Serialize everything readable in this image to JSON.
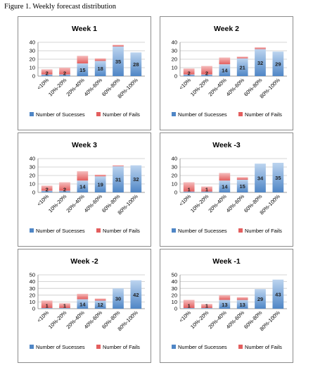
{
  "figure_caption": "Figure 1. Weekly forecast distribution",
  "colors": {
    "success_light": "#bcd4ef",
    "success_dark": "#4f86c6",
    "fail_light": "#f5bcbc",
    "fail_dark": "#e35e5e",
    "gridline": "#c8c8c8",
    "axis": "#888888"
  },
  "chart_data": [
    {
      "type": "bar",
      "stacked": true,
      "title": "Week 1",
      "categories": [
        "<10%",
        "10%-20%",
        "20%-40%",
        "40%-60%",
        "60%-80%",
        "80%-100%"
      ],
      "ylim": [
        0,
        40
      ],
      "yticks": [
        0,
        10,
        20,
        30,
        40
      ],
      "grid": true,
      "legend": "bottom",
      "series": [
        {
          "name": "Number of Sucesses",
          "values": [
            2,
            2,
            15,
            18,
            35,
            28
          ],
          "labels": [
            "2",
            "2",
            "15",
            "18",
            "35",
            "28"
          ]
        },
        {
          "name": "Number of Fails",
          "values": [
            6,
            8,
            9,
            3,
            2,
            0
          ]
        }
      ]
    },
    {
      "type": "bar",
      "stacked": true,
      "title": "Week 2",
      "categories": [
        "<10%",
        "10%-20%",
        "20%-40%",
        "40%-60%",
        "60%-80%",
        "80%-100%"
      ],
      "ylim": [
        0,
        40
      ],
      "yticks": [
        0,
        10,
        20,
        30,
        40
      ],
      "grid": true,
      "legend": "bottom",
      "series": [
        {
          "name": "Number of Sucesses",
          "values": [
            2,
            2,
            14,
            21,
            32,
            29
          ],
          "labels": [
            "2",
            "2",
            "14",
            "21",
            "32",
            "29"
          ]
        },
        {
          "name": "Number of Fails",
          "values": [
            7,
            10,
            8,
            2,
            2,
            0
          ]
        }
      ]
    },
    {
      "type": "bar",
      "stacked": true,
      "title": "Week 3",
      "categories": [
        "<10%",
        "10%-20%",
        "20%-40%",
        "40%-60%",
        "60%-80%",
        "80%-100%"
      ],
      "ylim": [
        0,
        40
      ],
      "yticks": [
        0,
        10,
        20,
        30,
        40
      ],
      "grid": true,
      "legend": "bottom",
      "series": [
        {
          "name": "Number of Sucesses",
          "values": [
            2,
            2,
            14,
            19,
            31,
            32
          ],
          "labels": [
            "2",
            "2",
            "14",
            "19",
            "31",
            "32"
          ]
        },
        {
          "name": "Number of Fails",
          "values": [
            6,
            10,
            11,
            2,
            1,
            0
          ]
        }
      ]
    },
    {
      "type": "bar",
      "stacked": true,
      "title": "Week -3",
      "categories": [
        "<10%",
        "10%-20%",
        "20%-40%",
        "40%-60%",
        "60%-80%",
        "80%-100%"
      ],
      "ylim": [
        0,
        40
      ],
      "yticks": [
        0,
        10,
        20,
        30,
        40
      ],
      "grid": true,
      "legend": "bottom",
      "series": [
        {
          "name": "Number of Sucesses",
          "values": [
            1,
            1,
            14,
            15,
            34,
            35
          ],
          "labels": [
            "1",
            "1",
            "14",
            "15",
            "34",
            "35"
          ]
        },
        {
          "name": "Number of Fails",
          "values": [
            11,
            6,
            9,
            3,
            0,
            0
          ]
        }
      ]
    },
    {
      "type": "bar",
      "stacked": true,
      "title": "Week -2",
      "categories": [
        "<10%",
        "10%-20%",
        "20%-40%",
        "40%-60%",
        "60%-80%",
        "80%-100%"
      ],
      "ylim": [
        0,
        50
      ],
      "yticks": [
        0,
        10,
        20,
        30,
        40,
        50
      ],
      "grid": true,
      "legend": "bottom",
      "series": [
        {
          "name": "Number of Sucesses",
          "values": [
            1,
            1,
            14,
            12,
            30,
            42
          ],
          "labels": [
            "1",
            "1",
            "14",
            "12",
            "30",
            "42"
          ]
        },
        {
          "name": "Number of Fails",
          "values": [
            11,
            7,
            8,
            3,
            0,
            0
          ]
        }
      ]
    },
    {
      "type": "bar",
      "stacked": true,
      "title": "Week -1",
      "categories": [
        "<10%",
        "10%-20%",
        "20%-40%",
        "40%-60%",
        "60%-80%",
        "80%-100%"
      ],
      "ylim": [
        0,
        50
      ],
      "yticks": [
        0,
        10,
        20,
        30,
        40,
        50
      ],
      "grid": true,
      "legend": "bottom",
      "series": [
        {
          "name": "Number of Sucesses",
          "values": [
            1,
            1,
            13,
            13,
            29,
            43
          ],
          "labels": [
            "1",
            "1",
            "13",
            "13",
            "29",
            "43"
          ]
        },
        {
          "name": "Number of Fails",
          "values": [
            12,
            6,
            7,
            4,
            0,
            0
          ]
        }
      ]
    }
  ]
}
